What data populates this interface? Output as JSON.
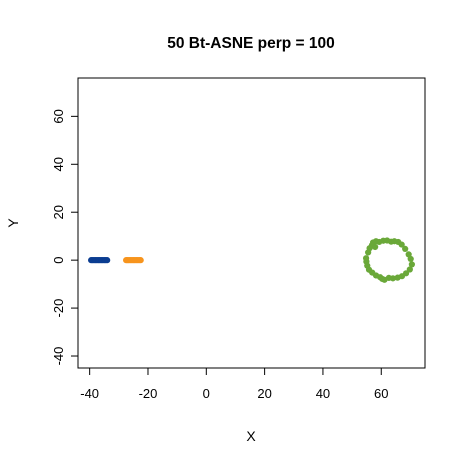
{
  "chart_data": {
    "type": "scatter",
    "title": "50 Bt-ASNE perp = 100",
    "xlabel": "X",
    "ylabel": "Y",
    "xlim": [
      -44,
      75
    ],
    "ylim": [
      -45,
      76
    ],
    "xticks": [
      -40,
      -20,
      0,
      20,
      40,
      60
    ],
    "yticks": [
      -40,
      -20,
      0,
      20,
      40,
      60
    ],
    "grid": false,
    "legend": "none",
    "series": [
      {
        "color": "#0b3d91",
        "x": [
          -39.5,
          -39,
          -38.5,
          -38,
          -37.5,
          -37,
          -36.5,
          -36,
          -35.5,
          -35,
          -34.5,
          -34
        ],
        "y": [
          0,
          0,
          0,
          0,
          0,
          0,
          0,
          0,
          0,
          0,
          0,
          0
        ]
      },
      {
        "color": "#f7941d",
        "x": [
          -27.5,
          -27,
          -26.5,
          -26,
          -25.5,
          -25,
          -24.5,
          -24,
          -23.5,
          -23,
          -22.5
        ],
        "y": [
          0,
          0,
          0,
          0,
          0,
          0,
          0,
          0,
          0,
          0,
          0
        ]
      },
      {
        "color": "#6aa839",
        "x": [
          54.8,
          55.5,
          56.0,
          56.8,
          57.2,
          58.2,
          59.3,
          60.7,
          62.0,
          63.4,
          64.5,
          65.8,
          67.0,
          68.2,
          69.4,
          70.1,
          70.5,
          69.8,
          68.5,
          67.1,
          65.6,
          64.0,
          62.6,
          61.1,
          59.6,
          58.2,
          56.9,
          55.8,
          55.2,
          54.9,
          57.9,
          60.3
        ],
        "y": [
          0.8,
          3.2,
          5.0,
          6.2,
          7.4,
          7.9,
          7.6,
          8.1,
          8.2,
          7.7,
          7.9,
          7.6,
          6.5,
          4.7,
          2.4,
          0.5,
          -1.8,
          -3.9,
          -5.5,
          -6.7,
          -7.3,
          -7.6,
          -7.4,
          -8.2,
          -7.1,
          -6.4,
          -5.2,
          -4.0,
          -2.3,
          -0.6,
          5.5,
          -7.8
        ]
      }
    ]
  }
}
